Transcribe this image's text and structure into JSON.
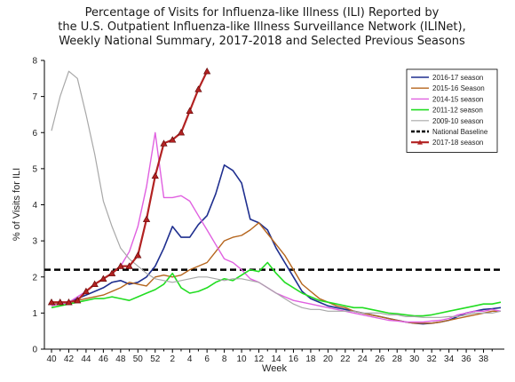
{
  "chart_data": {
    "type": "line",
    "title_lines": [
      "Percentage of Visits for Influenza-like Illness (ILI) Reported by",
      "the U.S. Outpatient Influenza-like Illness Surveillance Network (ILINet),",
      "Weekly National Summary, 2017-2018 and Selected Previous Seasons"
    ],
    "xlabel": "Week",
    "ylabel": "% of Visits for ILI",
    "x_tick_labels": [
      "40",
      "42",
      "44",
      "46",
      "48",
      "50",
      "52",
      "2",
      "4",
      "6",
      "8",
      "10",
      "12",
      "14",
      "16",
      "18",
      "20",
      "22",
      "24",
      "26",
      "28",
      "30",
      "32",
      "34",
      "36",
      "38"
    ],
    "x_index_range": [
      0,
      52
    ],
    "y_ticks": [
      0,
      1,
      2,
      3,
      4,
      5,
      6,
      7,
      8
    ],
    "ylim": [
      0,
      8
    ],
    "grid": false,
    "legend_position": "top-right",
    "baseline": {
      "name": "National Baseline",
      "value": 2.2,
      "color": "#000000",
      "dash": true
    },
    "series": [
      {
        "name": "2016-17 season",
        "color": "#1f2f8f",
        "width": 1.6,
        "values": [
          1.25,
          1.25,
          1.3,
          1.4,
          1.5,
          1.6,
          1.7,
          1.85,
          1.9,
          1.8,
          1.85,
          2.0,
          2.3,
          2.8,
          3.4,
          3.1,
          3.1,
          3.45,
          3.7,
          4.3,
          5.1,
          4.95,
          4.6,
          3.6,
          3.5,
          3.3,
          2.8,
          2.4,
          2.0,
          1.6,
          1.4,
          1.3,
          1.2,
          1.15,
          1.1,
          1.05,
          1.0,
          0.95,
          0.9,
          0.85,
          0.8,
          0.75,
          0.72,
          0.7,
          0.72,
          0.75,
          0.8,
          0.9,
          1.0,
          1.05,
          1.1,
          1.12,
          1.15
        ]
      },
      {
        "name": "2015-16 Season",
        "color": "#b5651d",
        "width": 1.4,
        "values": [
          1.25,
          1.25,
          1.3,
          1.35,
          1.4,
          1.45,
          1.5,
          1.6,
          1.7,
          1.85,
          1.8,
          1.75,
          2.0,
          2.05,
          2.0,
          2.05,
          2.2,
          2.3,
          2.4,
          2.7,
          3.0,
          3.1,
          3.15,
          3.3,
          3.5,
          3.2,
          2.9,
          2.6,
          2.2,
          1.8,
          1.6,
          1.4,
          1.3,
          1.2,
          1.15,
          1.05,
          1.0,
          0.95,
          0.9,
          0.85,
          0.8,
          0.75,
          0.72,
          0.72,
          0.72,
          0.75,
          0.8,
          0.85,
          0.9,
          0.95,
          1.0,
          1.05,
          1.05
        ]
      },
      {
        "name": "2014-15 season",
        "color": "#e060e0",
        "width": 1.4,
        "values": [
          1.2,
          1.25,
          1.3,
          1.45,
          1.6,
          1.8,
          1.95,
          2.1,
          2.3,
          2.7,
          3.4,
          4.5,
          6.0,
          4.2,
          4.2,
          4.25,
          4.1,
          3.7,
          3.3,
          2.9,
          2.5,
          2.4,
          2.2,
          1.95,
          1.85,
          1.7,
          1.55,
          1.45,
          1.35,
          1.3,
          1.25,
          1.2,
          1.15,
          1.1,
          1.05,
          1.0,
          0.95,
          0.9,
          0.85,
          0.8,
          0.78,
          0.75,
          0.75,
          0.75,
          0.78,
          0.8,
          0.85,
          0.95,
          1.0,
          1.05,
          1.05,
          1.1,
          1.05
        ]
      },
      {
        "name": "2011-12 season",
        "color": "#22dd22",
        "width": 1.6,
        "values": [
          1.15,
          1.2,
          1.25,
          1.3,
          1.35,
          1.4,
          1.4,
          1.45,
          1.4,
          1.35,
          1.45,
          1.55,
          1.65,
          1.8,
          2.1,
          1.7,
          1.55,
          1.6,
          1.7,
          1.85,
          1.95,
          1.9,
          2.05,
          2.2,
          2.15,
          2.4,
          2.1,
          1.85,
          1.7,
          1.55,
          1.45,
          1.35,
          1.3,
          1.25,
          1.2,
          1.15,
          1.15,
          1.1,
          1.05,
          1.0,
          0.98,
          0.95,
          0.92,
          0.92,
          0.95,
          1.0,
          1.05,
          1.1,
          1.15,
          1.2,
          1.25,
          1.25,
          1.3
        ]
      },
      {
        "name": "2009-10 season",
        "color": "#a8a8a8",
        "width": 1.2,
        "values": [
          6.05,
          7.0,
          7.7,
          7.5,
          6.5,
          5.4,
          4.1,
          3.4,
          2.8,
          2.5,
          2.3,
          2.1,
          1.95,
          1.9,
          1.85,
          1.9,
          1.95,
          2.0,
          2.0,
          1.95,
          1.9,
          1.95,
          1.95,
          1.9,
          1.85,
          1.7,
          1.55,
          1.4,
          1.25,
          1.15,
          1.1,
          1.1,
          1.05,
          1.05,
          1.05,
          1.05,
          1.0,
          1.0,
          1.0,
          0.95,
          0.95,
          0.9,
          0.9,
          0.88,
          0.88,
          0.88,
          0.9,
          0.9,
          0.95,
          1.0,
          1.0,
          1.0,
          1.05
        ]
      },
      {
        "name": "2017-18 season",
        "color": "#b22222",
        "width": 2.2,
        "marker": "triangle",
        "values": [
          1.3,
          1.3,
          1.3,
          1.35,
          1.6,
          1.8,
          1.95,
          2.1,
          2.3,
          2.3,
          2.6,
          3.6,
          4.8,
          5.7,
          5.8,
          6.0,
          6.6,
          7.2,
          7.7
        ]
      }
    ]
  }
}
